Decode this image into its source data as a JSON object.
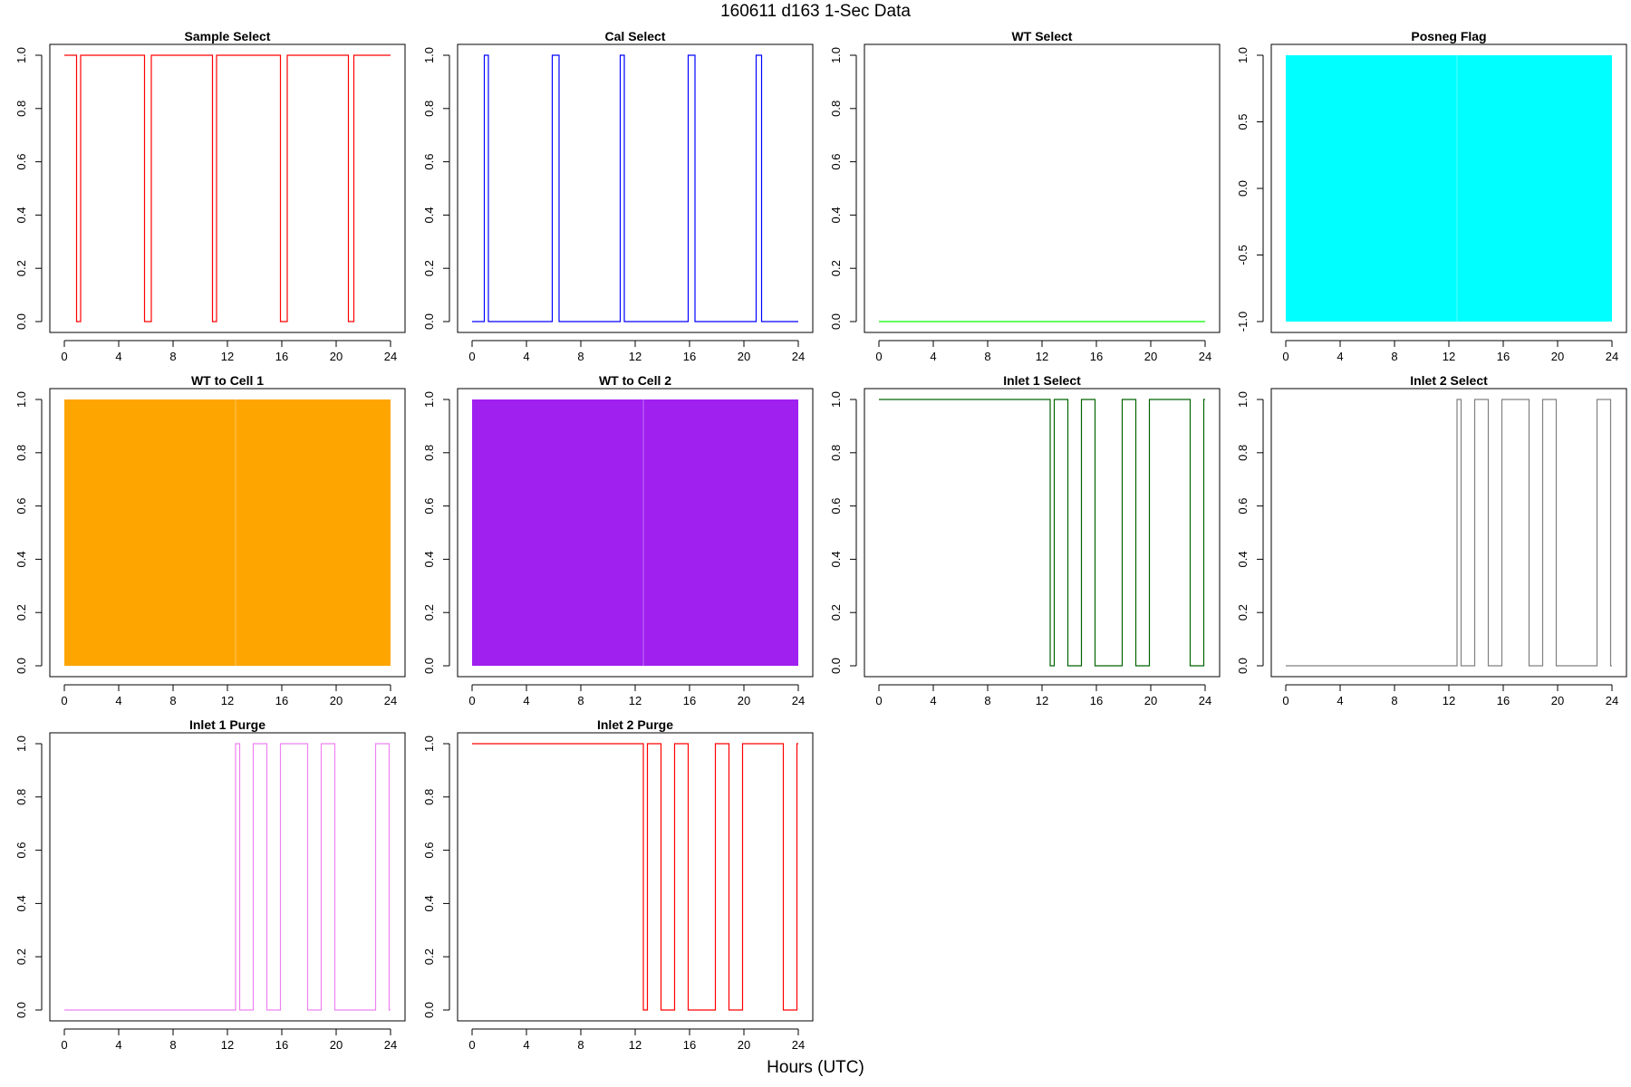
{
  "page": {
    "title": "160611   d163   1-Sec Data",
    "xlabel": "Hours (UTC)"
  },
  "chart_data": [
    {
      "type": "line",
      "title": "Sample Select",
      "color": "#ff0000",
      "xlim": [
        0,
        24
      ],
      "ylim": [
        0,
        1
      ],
      "xticks": [
        0,
        4,
        8,
        12,
        16,
        20,
        24
      ],
      "yticks": [
        0.0,
        0.2,
        0.4,
        0.6,
        0.8,
        1.0
      ],
      "ytick_labels": [
        "0.0",
        "0.2",
        "0.4",
        "0.6",
        "0.8",
        "1.0"
      ],
      "x": [
        0,
        0.9,
        0.9,
        1.2,
        1.2,
        5.9,
        5.9,
        6.4,
        6.4,
        10.9,
        10.9,
        11.2,
        11.2,
        15.9,
        15.9,
        16.4,
        16.4,
        20.9,
        20.9,
        21.3,
        21.3,
        24
      ],
      "y": [
        1,
        1,
        0,
        0,
        1,
        1,
        0,
        0,
        1,
        1,
        0,
        0,
        1,
        1,
        0,
        0,
        1,
        1,
        0,
        0,
        1,
        1
      ]
    },
    {
      "type": "line",
      "title": "Cal Select",
      "color": "#0000ff",
      "xlim": [
        0,
        24
      ],
      "ylim": [
        0,
        1
      ],
      "xticks": [
        0,
        4,
        8,
        12,
        16,
        20,
        24
      ],
      "yticks": [
        0.0,
        0.2,
        0.4,
        0.6,
        0.8,
        1.0
      ],
      "ytick_labels": [
        "0.0",
        "0.2",
        "0.4",
        "0.6",
        "0.8",
        "1.0"
      ],
      "x": [
        0,
        0.9,
        0.9,
        1.2,
        1.2,
        5.9,
        5.9,
        6.4,
        6.4,
        10.9,
        10.9,
        11.2,
        11.2,
        15.9,
        15.9,
        16.4,
        16.4,
        20.9,
        20.9,
        21.3,
        21.3,
        24
      ],
      "y": [
        0,
        0,
        1,
        1,
        0,
        0,
        1,
        1,
        0,
        0,
        1,
        1,
        0,
        0,
        1,
        1,
        0,
        0,
        1,
        1,
        0,
        0
      ]
    },
    {
      "type": "line",
      "title": "WT Select",
      "color": "#00ff00",
      "xlim": [
        0,
        24
      ],
      "ylim": [
        0,
        1
      ],
      "xticks": [
        0,
        4,
        8,
        12,
        16,
        20,
        24
      ],
      "yticks": [
        0.0,
        0.2,
        0.4,
        0.6,
        0.8,
        1.0
      ],
      "ytick_labels": [
        "0.0",
        "0.2",
        "0.4",
        "0.6",
        "0.8",
        "1.0"
      ],
      "x": [
        0,
        24
      ],
      "y": [
        0,
        0
      ]
    },
    {
      "type": "area",
      "title": "Posneg Flag",
      "color": "#00ffff",
      "xlim": [
        0,
        24
      ],
      "ylim": [
        -1,
        1
      ],
      "xticks": [
        0,
        4,
        8,
        12,
        16,
        20,
        24
      ],
      "yticks": [
        -1.0,
        -0.5,
        0.0,
        0.5,
        1.0
      ],
      "ytick_labels": [
        "-1.0",
        "-0.5",
        "0.0",
        "0.5",
        "1.0"
      ],
      "fill": {
        "from": 0,
        "to": 24,
        "low": -1,
        "high": 1,
        "gap_at": 12.6
      }
    },
    {
      "type": "area",
      "title": "WT to Cell 1",
      "color": "#ffa500",
      "xlim": [
        0,
        24
      ],
      "ylim": [
        0,
        1
      ],
      "xticks": [
        0,
        4,
        8,
        12,
        16,
        20,
        24
      ],
      "yticks": [
        0.0,
        0.2,
        0.4,
        0.6,
        0.8,
        1.0
      ],
      "ytick_labels": [
        "0.0",
        "0.2",
        "0.4",
        "0.6",
        "0.8",
        "1.0"
      ],
      "fill": {
        "from": 0,
        "to": 24,
        "low": 0,
        "high": 1,
        "gap_at": 12.6
      }
    },
    {
      "type": "area",
      "title": "WT to Cell 2",
      "color": "#a020f0",
      "xlim": [
        0,
        24
      ],
      "ylim": [
        0,
        1
      ],
      "xticks": [
        0,
        4,
        8,
        12,
        16,
        20,
        24
      ],
      "yticks": [
        0.0,
        0.2,
        0.4,
        0.6,
        0.8,
        1.0
      ],
      "ytick_labels": [
        "0.0",
        "0.2",
        "0.4",
        "0.6",
        "0.8",
        "1.0"
      ],
      "fill": {
        "from": 0,
        "to": 24,
        "low": 0,
        "high": 1,
        "gap_at": 12.6
      }
    },
    {
      "type": "line",
      "title": "Inlet 1 Select",
      "color": "#006400",
      "xlim": [
        0,
        24
      ],
      "ylim": [
        0,
        1
      ],
      "xticks": [
        0,
        4,
        8,
        12,
        16,
        20,
        24
      ],
      "yticks": [
        0.0,
        0.2,
        0.4,
        0.6,
        0.8,
        1.0
      ],
      "ytick_labels": [
        "0.0",
        "0.2",
        "0.4",
        "0.6",
        "0.8",
        "1.0"
      ],
      "x": [
        0,
        12.6,
        12.6,
        12.9,
        12.9,
        13.9,
        13.9,
        14.9,
        14.9,
        15.9,
        15.9,
        17.9,
        17.9,
        18.9,
        18.9,
        19.9,
        19.9,
        22.9,
        22.9,
        23.9,
        23.9,
        24
      ],
      "y": [
        1,
        1,
        0,
        0,
        1,
        1,
        0,
        0,
        1,
        1,
        0,
        0,
        1,
        1,
        0,
        0,
        1,
        1,
        0,
        0,
        1,
        1
      ]
    },
    {
      "type": "line",
      "title": "Inlet 2 Select",
      "color": "#808080",
      "xlim": [
        0,
        24
      ],
      "ylim": [
        0,
        1
      ],
      "xticks": [
        0,
        4,
        8,
        12,
        16,
        20,
        24
      ],
      "yticks": [
        0.0,
        0.2,
        0.4,
        0.6,
        0.8,
        1.0
      ],
      "ytick_labels": [
        "0.0",
        "0.2",
        "0.4",
        "0.6",
        "0.8",
        "1.0"
      ],
      "x": [
        0,
        12.6,
        12.6,
        12.9,
        12.9,
        13.9,
        13.9,
        14.9,
        14.9,
        15.9,
        15.9,
        17.9,
        17.9,
        18.9,
        18.9,
        19.9,
        19.9,
        22.9,
        22.9,
        23.9,
        23.9,
        24
      ],
      "y": [
        0,
        0,
        1,
        1,
        0,
        0,
        1,
        1,
        0,
        0,
        1,
        1,
        0,
        0,
        1,
        1,
        0,
        0,
        1,
        1,
        0,
        0
      ]
    },
    {
      "type": "line",
      "title": "Inlet 1 Purge",
      "color": "#ee82ee",
      "xlim": [
        0,
        24
      ],
      "ylim": [
        0,
        1
      ],
      "xticks": [
        0,
        4,
        8,
        12,
        16,
        20,
        24
      ],
      "yticks": [
        0.0,
        0.2,
        0.4,
        0.6,
        0.8,
        1.0
      ],
      "ytick_labels": [
        "0.0",
        "0.2",
        "0.4",
        "0.6",
        "0.8",
        "1.0"
      ],
      "x": [
        0,
        12.6,
        12.6,
        12.9,
        12.9,
        13.9,
        13.9,
        14.9,
        14.9,
        15.9,
        15.9,
        17.9,
        17.9,
        18.9,
        18.9,
        19.9,
        19.9,
        22.9,
        22.9,
        23.9,
        23.9,
        24
      ],
      "y": [
        0,
        0,
        1,
        1,
        0,
        0,
        1,
        1,
        0,
        0,
        1,
        1,
        0,
        0,
        1,
        1,
        0,
        0,
        1,
        1,
        0,
        0
      ]
    },
    {
      "type": "line",
      "title": "Inlet 2 Purge",
      "color": "#ff0000",
      "xlim": [
        0,
        24
      ],
      "ylim": [
        0,
        1
      ],
      "xticks": [
        0,
        4,
        8,
        12,
        16,
        20,
        24
      ],
      "yticks": [
        0.0,
        0.2,
        0.4,
        0.6,
        0.8,
        1.0
      ],
      "ytick_labels": [
        "0.0",
        "0.2",
        "0.4",
        "0.6",
        "0.8",
        "1.0"
      ],
      "x": [
        0,
        12.6,
        12.6,
        12.9,
        12.9,
        13.9,
        13.9,
        14.9,
        14.9,
        15.9,
        15.9,
        17.9,
        17.9,
        18.9,
        18.9,
        19.9,
        19.9,
        22.9,
        22.9,
        23.9,
        23.9,
        24
      ],
      "y": [
        1,
        1,
        0,
        0,
        1,
        1,
        0,
        0,
        1,
        1,
        0,
        0,
        1,
        1,
        0,
        0,
        1,
        1,
        0,
        0,
        1,
        1
      ]
    }
  ]
}
